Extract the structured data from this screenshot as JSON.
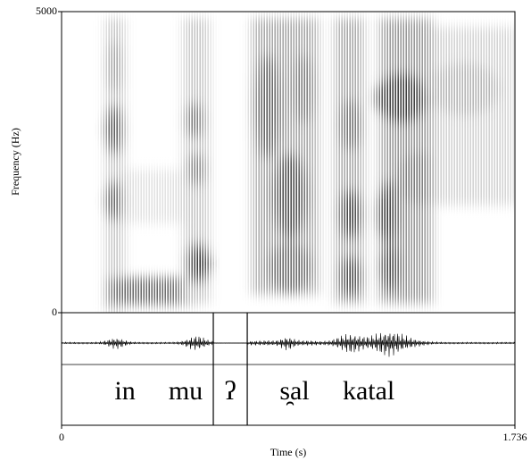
{
  "chart_data": {
    "type": "spectrogram",
    "ylabel": "Frequency (Hz)",
    "xlabel": "Time (s)",
    "ylim": [
      0,
      5000
    ],
    "yticks": [
      0,
      5000
    ],
    "xlim": [
      0,
      1.736
    ],
    "xticks": [
      0,
      1.736
    ],
    "tier_boundaries": [
      0.581,
      0.711
    ],
    "annotations": [
      {
        "text": "in",
        "time": 0.243
      },
      {
        "text": "mu",
        "time": 0.475
      },
      {
        "text": "ʔ",
        "time": 0.646
      },
      {
        "text": "s̯al",
        "time": 0.892
      },
      {
        "text": "katal",
        "time": 1.176
      }
    ]
  }
}
